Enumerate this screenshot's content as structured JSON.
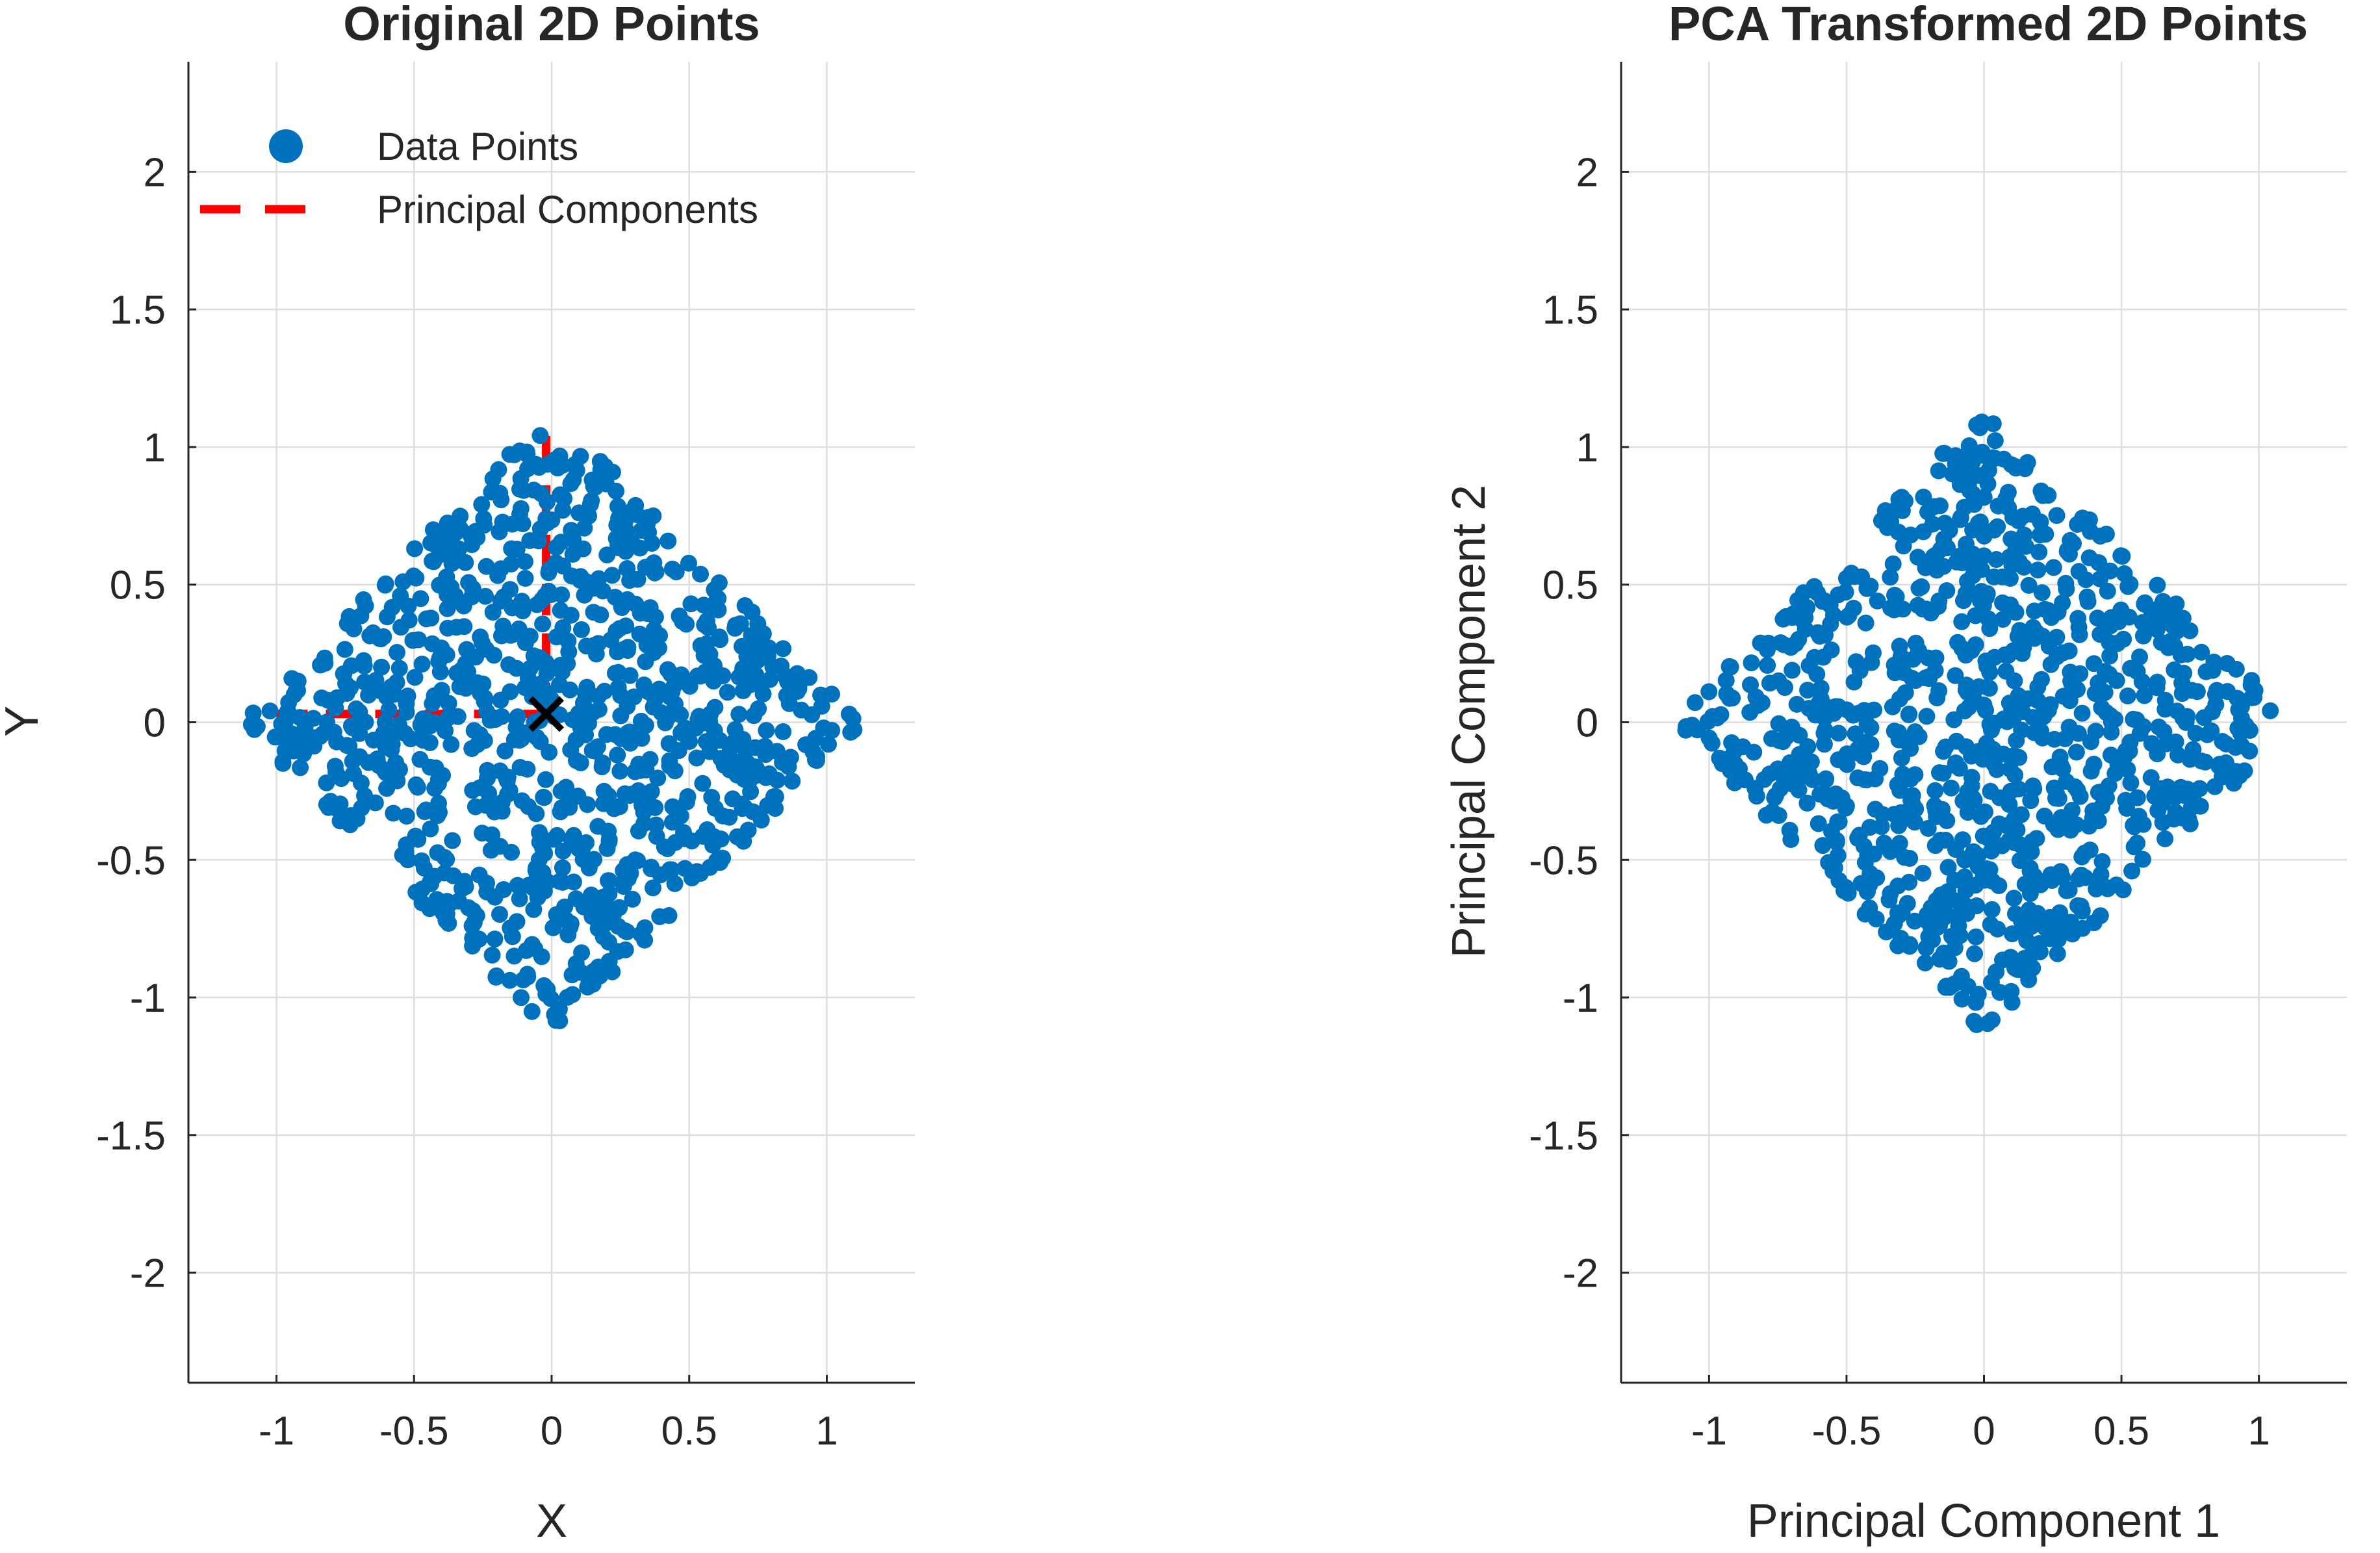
{
  "chart_data": [
    {
      "type": "scatter",
      "title": "Original 2D Points",
      "xlabel": "X",
      "ylabel": "Y",
      "xlim": [
        -1.32,
        1.32
      ],
      "ylim": [
        -2.4,
        2.4
      ],
      "xticks": [
        -1,
        -0.5,
        0,
        0.5,
        1
      ],
      "xtick_labels": [
        "-1",
        "-0.5",
        "0",
        "0.5",
        "1"
      ],
      "yticks": [
        -2,
        -1.5,
        -1,
        -0.5,
        0,
        0.5,
        1,
        1.5,
        2
      ],
      "ytick_labels": [
        "-2",
        "-1.5",
        "-1",
        "-0.5",
        "0",
        "0.5",
        "1",
        "1.5",
        "2"
      ],
      "grid": true,
      "legend": {
        "location": "top-left",
        "entries": [
          {
            "label": "Data Points",
            "marker": "circle",
            "color": "#0072BD"
          },
          {
            "label": "Principal Components",
            "marker": "dashed-line",
            "color": "#FF0000"
          }
        ]
      },
      "series": [
        {
          "name": "Data Points",
          "kind": "points",
          "color": "#0072BD",
          "shape": {
            "center": [
              0,
              0
            ],
            "half_width": 0.8,
            "rotation_deg": 45,
            "count": 1000,
            "seed": 12345
          }
        },
        {
          "name": "Principal Components",
          "kind": "dashed-lines",
          "color": "#FF0000",
          "segments": [
            [
              [
                -1.0,
                0.03
              ],
              [
                -0.02,
                0.03
              ]
            ],
            [
              [
                -0.02,
                0.03
              ],
              [
                -0.02,
                1.05
              ]
            ]
          ]
        },
        {
          "kind": "mean-marker",
          "marker": "x",
          "color": "#000000",
          "point": [
            -0.02,
            0.03
          ]
        }
      ]
    },
    {
      "type": "scatter",
      "title": "PCA Transformed 2D Points",
      "xlabel": "Principal Component 1",
      "ylabel": "Principal Component 2",
      "xlim": [
        -1.32,
        1.32
      ],
      "ylim": [
        -2.4,
        2.4
      ],
      "xticks": [
        -1,
        -0.5,
        0,
        0.5,
        1
      ],
      "xtick_labels": [
        "-1",
        "-0.5",
        "0",
        "0.5",
        "1"
      ],
      "yticks": [
        -2,
        -1.5,
        -1,
        -0.5,
        0,
        0.5,
        1,
        1.5,
        2
      ],
      "ytick_labels": [
        "-2",
        "-1.5",
        "-1",
        "-0.5",
        "0",
        "0.5",
        "1",
        "1.5",
        "2"
      ],
      "grid": true,
      "series": [
        {
          "name": "Data Points",
          "kind": "points",
          "color": "#0072BD",
          "shape": {
            "center": [
              0,
              0
            ],
            "half_width": 0.8,
            "rotation_deg": 45,
            "count": 1000,
            "seed": 12345,
            "transform": "rotate-90"
          }
        }
      ]
    }
  ]
}
